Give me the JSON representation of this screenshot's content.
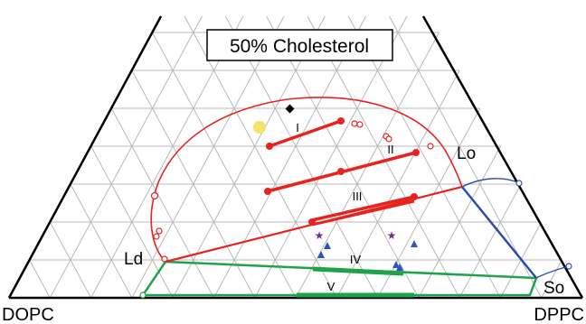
{
  "title": "50% Cholesterol",
  "vertices": {
    "left": "DOPC",
    "right": "DPPC"
  },
  "phase_labels": {
    "ld": "Ld",
    "lo": "Lo",
    "so": "So"
  },
  "region_labels": [
    "I",
    "II",
    "III",
    "IV",
    "V"
  ],
  "colors": {
    "grid": "#b8b8b8",
    "boundary": "#e8231f",
    "tie_line": "#e8231f",
    "lo_so_boundary": "#2a4fa8",
    "ld_so_region": "#1fa34a",
    "triangle_marker": "#2a56b8",
    "star_marker": "#7a2a8a",
    "special_point": "#f4e36c",
    "diamond_marker": "#000000"
  },
  "markers": {
    "triangles": 5,
    "stars": 2,
    "diamonds": 1,
    "highlighted_points": 1
  }
}
